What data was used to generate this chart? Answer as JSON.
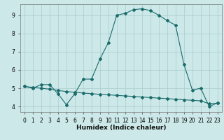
{
  "xlabel": "Humidex (Indice chaleur)",
  "background_color": "#cce8e8",
  "grid_color": "#aacccc",
  "line_color": "#1a6b6b",
  "x_values": [
    0,
    1,
    2,
    3,
    4,
    5,
    6,
    7,
    8,
    9,
    10,
    11,
    12,
    13,
    14,
    15,
    16,
    17,
    18,
    19,
    20,
    21,
    22,
    23
  ],
  "curve1_y": [
    5.1,
    5.0,
    5.2,
    5.2,
    4.7,
    4.1,
    4.7,
    5.5,
    5.5,
    6.6,
    7.5,
    9.0,
    9.1,
    9.3,
    9.35,
    9.25,
    9.0,
    8.7,
    8.45,
    6.3,
    4.9,
    5.0,
    4.0,
    4.2
  ],
  "curve2_y": [
    5.1,
    5.05,
    5.0,
    4.95,
    4.88,
    4.82,
    4.78,
    4.74,
    4.7,
    4.67,
    4.64,
    4.61,
    4.58,
    4.55,
    4.52,
    4.49,
    4.46,
    4.43,
    4.4,
    4.37,
    4.34,
    4.31,
    4.15,
    4.18
  ],
  "ylim": [
    3.7,
    9.6
  ],
  "xlim": [
    -0.5,
    23.5
  ],
  "yticks": [
    4,
    5,
    6,
    7,
    8,
    9
  ],
  "xticks": [
    0,
    1,
    2,
    3,
    4,
    5,
    6,
    7,
    8,
    9,
    10,
    11,
    12,
    13,
    14,
    15,
    16,
    17,
    18,
    19,
    20,
    21,
    22,
    23
  ]
}
